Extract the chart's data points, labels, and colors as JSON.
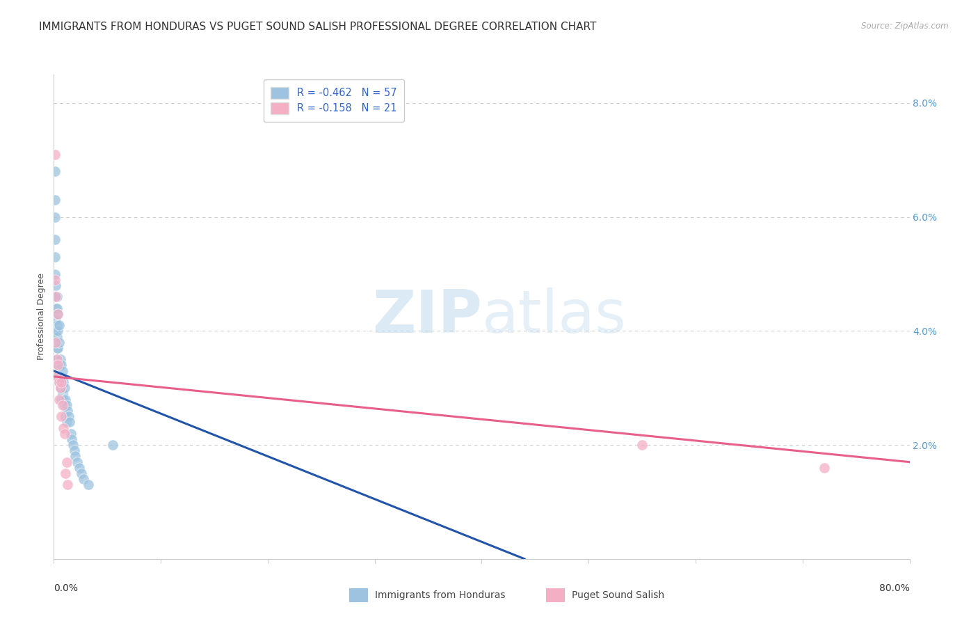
{
  "title": "IMMIGRANTS FROM HONDURAS VS PUGET SOUND SALISH PROFESSIONAL DEGREE CORRELATION CHART",
  "source": "Source: ZipAtlas.com",
  "ylabel": "Professional Degree",
  "xlim": [
    0.0,
    0.8
  ],
  "ylim": [
    0.0,
    0.085
  ],
  "watermark_zip": "ZIP",
  "watermark_atlas": "atlas",
  "blue_color": "#9dc3e0",
  "pink_color": "#f4afc5",
  "blue_line_color": "#2255aa",
  "pink_line_color": "#e8608a",
  "blue_scatter": [
    [
      0.001,
      0.068
    ],
    [
      0.001,
      0.063
    ],
    [
      0.001,
      0.06
    ],
    [
      0.001,
      0.056
    ],
    [
      0.001,
      0.053
    ],
    [
      0.001,
      0.05
    ],
    [
      0.002,
      0.048
    ],
    [
      0.002,
      0.046
    ],
    [
      0.002,
      0.044
    ],
    [
      0.002,
      0.042
    ],
    [
      0.002,
      0.04
    ],
    [
      0.002,
      0.038
    ],
    [
      0.003,
      0.046
    ],
    [
      0.003,
      0.044
    ],
    [
      0.003,
      0.041
    ],
    [
      0.003,
      0.039
    ],
    [
      0.003,
      0.037
    ],
    [
      0.003,
      0.035
    ],
    [
      0.004,
      0.043
    ],
    [
      0.004,
      0.04
    ],
    [
      0.004,
      0.037
    ],
    [
      0.004,
      0.034
    ],
    [
      0.004,
      0.032
    ],
    [
      0.005,
      0.041
    ],
    [
      0.005,
      0.038
    ],
    [
      0.005,
      0.034
    ],
    [
      0.005,
      0.031
    ],
    [
      0.006,
      0.035
    ],
    [
      0.006,
      0.032
    ],
    [
      0.006,
      0.03
    ],
    [
      0.007,
      0.034
    ],
    [
      0.007,
      0.031
    ],
    [
      0.007,
      0.028
    ],
    [
      0.008,
      0.033
    ],
    [
      0.008,
      0.029
    ],
    [
      0.009,
      0.031
    ],
    [
      0.009,
      0.028
    ],
    [
      0.01,
      0.03
    ],
    [
      0.01,
      0.027
    ],
    [
      0.011,
      0.028
    ],
    [
      0.011,
      0.025
    ],
    [
      0.012,
      0.027
    ],
    [
      0.012,
      0.024
    ],
    [
      0.013,
      0.026
    ],
    [
      0.014,
      0.025
    ],
    [
      0.015,
      0.024
    ],
    [
      0.016,
      0.022
    ],
    [
      0.017,
      0.021
    ],
    [
      0.018,
      0.02
    ],
    [
      0.019,
      0.019
    ],
    [
      0.02,
      0.018
    ],
    [
      0.022,
      0.017
    ],
    [
      0.024,
      0.016
    ],
    [
      0.026,
      0.015
    ],
    [
      0.028,
      0.014
    ],
    [
      0.055,
      0.02
    ],
    [
      0.032,
      0.013
    ]
  ],
  "pink_scatter": [
    [
      0.001,
      0.071
    ],
    [
      0.001,
      0.049
    ],
    [
      0.002,
      0.046
    ],
    [
      0.002,
      0.038
    ],
    [
      0.003,
      0.035
    ],
    [
      0.003,
      0.032
    ],
    [
      0.004,
      0.043
    ],
    [
      0.004,
      0.034
    ],
    [
      0.005,
      0.031
    ],
    [
      0.005,
      0.028
    ],
    [
      0.006,
      0.03
    ],
    [
      0.007,
      0.031
    ],
    [
      0.007,
      0.025
    ],
    [
      0.008,
      0.027
    ],
    [
      0.009,
      0.023
    ],
    [
      0.01,
      0.022
    ],
    [
      0.011,
      0.015
    ],
    [
      0.012,
      0.017
    ],
    [
      0.013,
      0.013
    ],
    [
      0.55,
      0.02
    ],
    [
      0.72,
      0.016
    ]
  ],
  "blue_trendline_x": [
    0.0,
    0.44
  ],
  "blue_trendline_y": [
    0.033,
    0.0
  ],
  "pink_trendline_x": [
    0.0,
    0.8
  ],
  "pink_trendline_y": [
    0.032,
    0.017
  ],
  "background_color": "#ffffff",
  "grid_color": "#cccccc",
  "title_color": "#333333",
  "right_tick_color": "#5599cc",
  "title_fontsize": 11,
  "legend_blue_label": "R = -0.462   N = 57",
  "legend_pink_label": "R = -0.158   N = 21"
}
